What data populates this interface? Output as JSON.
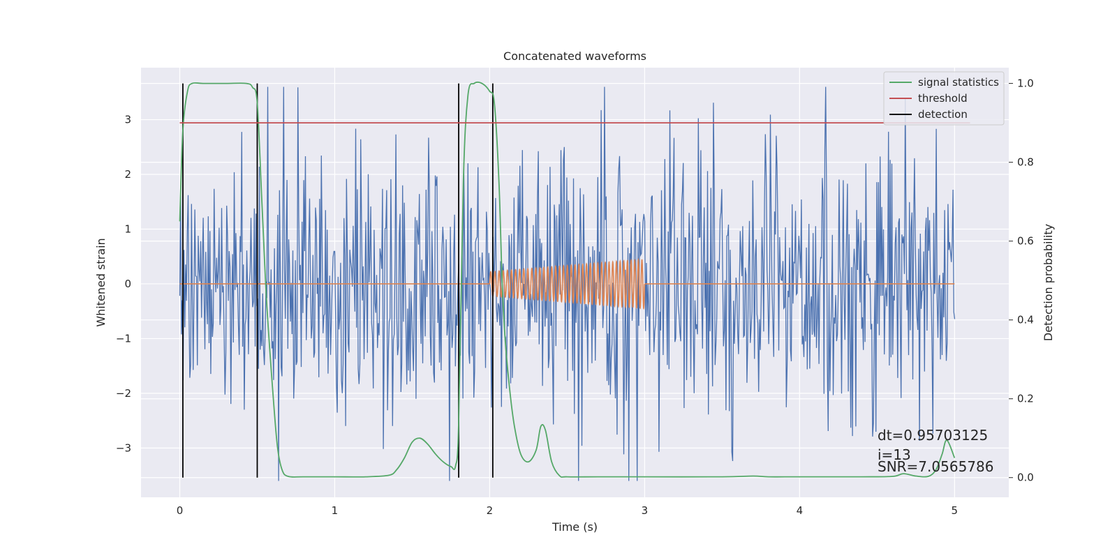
{
  "chart_data": {
    "type": "line",
    "title": "Concatenated waveforms",
    "xlabel": "Time (s)",
    "ylabel": "Whitened strain",
    "ylabel_right": "Detection probability",
    "xlim": [
      -0.25,
      5.35
    ],
    "ylim": [
      -3.9,
      3.95
    ],
    "ylim_right": [
      -0.05,
      1.04
    ],
    "x_ticks": [
      "0",
      "1",
      "2",
      "3",
      "4",
      "5"
    ],
    "y_ticks": [
      "−3",
      "−2",
      "−1",
      "0",
      "1",
      "2",
      "3"
    ],
    "y_ticks_right": [
      "0.0",
      "0.2",
      "0.4",
      "0.6",
      "0.8",
      "1.0"
    ],
    "grid": true,
    "legend_position": "top-right",
    "background": "#eaeaf2",
    "legend": [
      {
        "name": "signal statistics",
        "color": "#55a868"
      },
      {
        "name": "threshold",
        "color": "#c44e52"
      },
      {
        "name": "detection",
        "color": "#000000"
      }
    ],
    "series": [
      {
        "name": "whitened strain (noise)",
        "axis": "left",
        "color": "#4c72b0",
        "x_range": [
          0,
          5
        ],
        "typical_range": [
          -1.3,
          1.3
        ],
        "extreme_range": [
          -3.6,
          3.6
        ]
      },
      {
        "name": "injected waveform",
        "axis": "left",
        "color": "#dd8452",
        "segments": [
          {
            "x_range": [
              0,
              2
            ],
            "value": 0
          },
          {
            "x_range": [
              2,
              3
            ],
            "type": "chirp",
            "amplitude_start": 0.22,
            "amplitude_end": 0.45,
            "cycles": 40
          },
          {
            "x_range": [
              3,
              5
            ],
            "value": 0
          }
        ]
      },
      {
        "name": "signal statistics",
        "axis": "right",
        "color": "#55a868",
        "x": [
          0.0,
          0.02,
          0.05,
          0.08,
          0.15,
          0.3,
          0.43,
          0.47,
          0.5,
          0.53,
          0.56,
          0.6,
          0.63,
          0.66,
          0.7,
          0.8,
          1.0,
          1.2,
          1.35,
          1.4,
          1.45,
          1.5,
          1.55,
          1.6,
          1.65,
          1.7,
          1.75,
          1.78,
          1.8,
          1.83,
          1.86,
          1.9,
          1.95,
          2.0,
          2.03,
          2.06,
          2.08,
          2.1,
          2.13,
          2.16,
          2.2,
          2.25,
          2.3,
          2.33,
          2.36,
          2.4,
          2.45,
          2.5,
          2.7,
          3.0,
          3.5,
          3.7,
          3.8,
          4.0,
          4.4,
          4.6,
          4.67,
          4.75,
          4.83,
          4.88,
          4.92,
          4.95,
          5.0
        ],
        "y": [
          0.65,
          0.88,
          0.98,
          1.0,
          1.0,
          1.0,
          1.0,
          0.99,
          0.95,
          0.7,
          0.45,
          0.22,
          0.08,
          0.02,
          0.003,
          0.002,
          0.002,
          0.002,
          0.006,
          0.02,
          0.05,
          0.09,
          0.1,
          0.085,
          0.06,
          0.04,
          0.028,
          0.03,
          0.14,
          0.75,
          0.97,
          1.0,
          1.0,
          0.98,
          0.95,
          0.75,
          0.5,
          0.35,
          0.22,
          0.13,
          0.06,
          0.04,
          0.07,
          0.13,
          0.12,
          0.04,
          0.005,
          0.002,
          0.002,
          0.002,
          0.002,
          0.004,
          0.002,
          0.002,
          0.002,
          0.003,
          0.01,
          0.004,
          0.003,
          0.02,
          0.06,
          0.095,
          0.05
        ]
      },
      {
        "name": "threshold",
        "axis": "right",
        "color": "#c44e52",
        "x": [
          0.0,
          5.1
        ],
        "y": [
          0.9,
          0.9
        ]
      }
    ],
    "detections": [
      0.02,
      0.5,
      1.8,
      2.02
    ],
    "annotations": [
      "dt=0.95703125",
      " i=13",
      "SNR=7.0565786"
    ]
  }
}
